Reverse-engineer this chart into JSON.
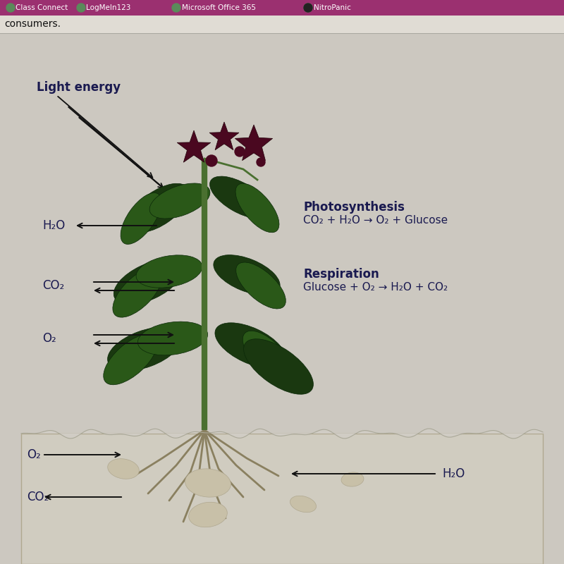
{
  "bg_color": "#ccc8c0",
  "main_bg": "#d0ccc4",
  "toolbar_color": "#9b3070",
  "toolbar_text_color": "#ffffff",
  "toolbar_items": [
    "Class Connect",
    "LogMeIn123",
    "Microsoft Office 365",
    "NitroPanic"
  ],
  "consumers_bar_color": "#e0dcd4",
  "consumers_text": "consumers.",
  "consumers_text_color": "#111111",
  "light_energy_label": "Light energy",
  "h2o_label": "H₂O",
  "co2_label": "CO₂",
  "o2_label": "O₂",
  "photosynthesis_title": "Photosynthesis",
  "photosynthesis_eq": "CO₂ + H₂O → O₂ + Glucose",
  "respiration_title": "Respiration",
  "respiration_eq": "Glucose + O₂ → H₂O + CO₂",
  "soil_o2_label": "O₂",
  "soil_h2o_label": "H₂O",
  "soil_co2_label": "CO₂",
  "text_color": "#1a1a50",
  "arrow_color": "#111111",
  "soil_bg": "#ccc8b8",
  "soil_border": "#b0a898",
  "stem_color": "#4a7030",
  "leaf_color_dark": "#1a3810",
  "leaf_color_mid": "#2a5818",
  "flower_color": "#4a0820",
  "root_color": "#8a8060",
  "rock_color": "#c0b898"
}
